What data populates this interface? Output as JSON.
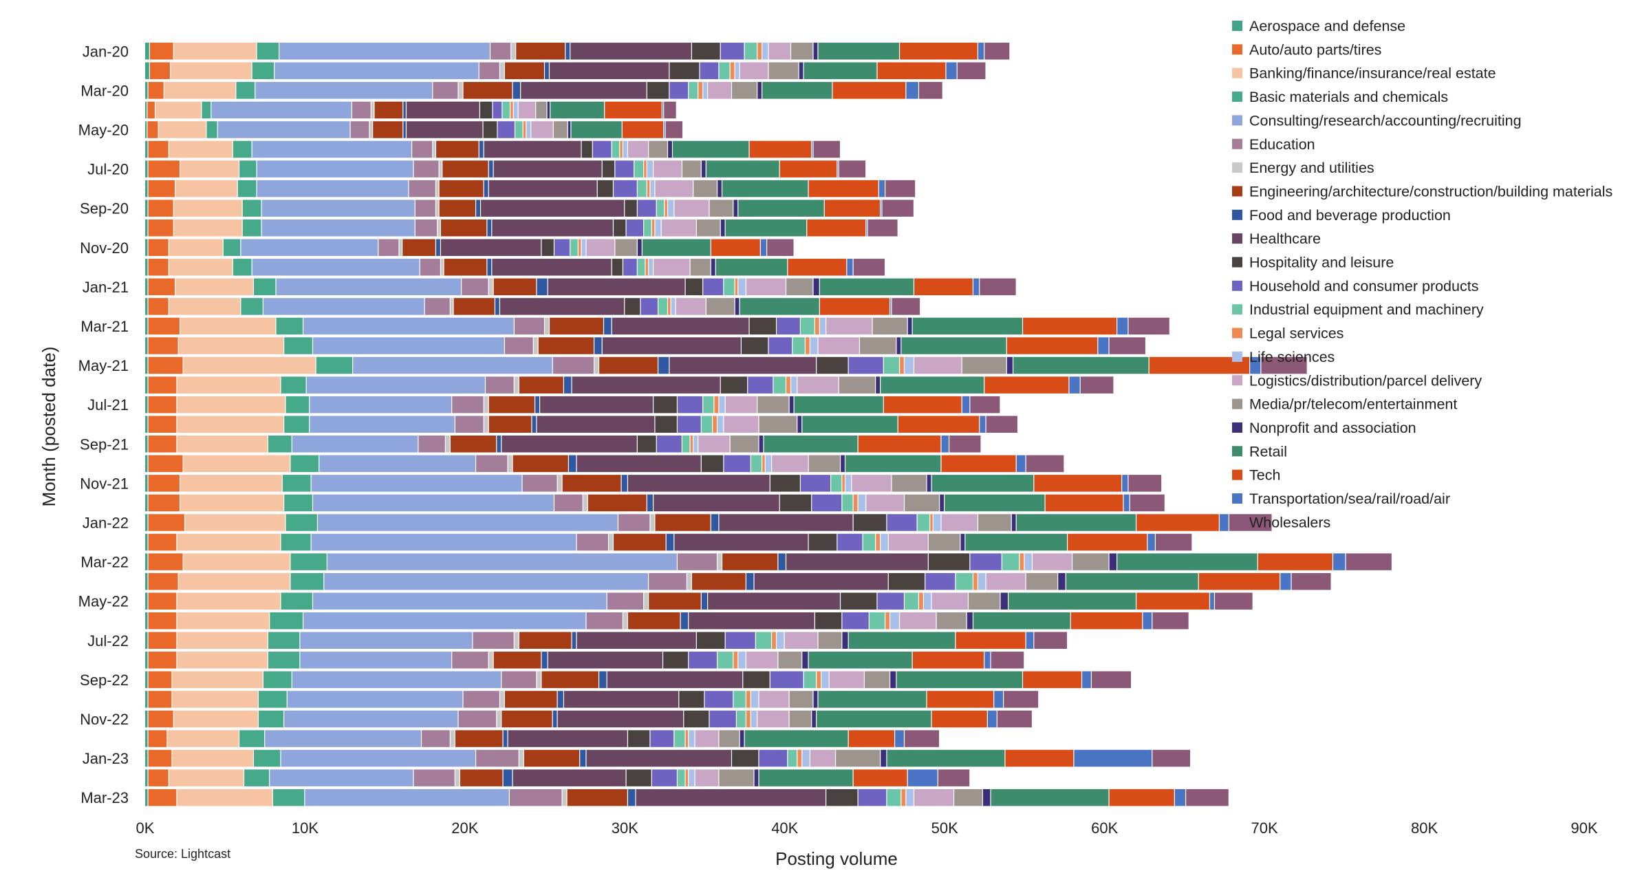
{
  "chart_data": {
    "type": "bar",
    "orientation": "horizontal",
    "stacked": true,
    "xlabel": "Posting volume",
    "ylabel": "Month (posted date)",
    "source": "Source: Lightcast",
    "xlim": [
      0,
      90000
    ],
    "x_ticks": [
      0,
      10000,
      20000,
      30000,
      40000,
      50000,
      60000,
      70000,
      80000,
      90000
    ],
    "x_tick_labels": [
      "0K",
      "10K",
      "20K",
      "30K",
      "40K",
      "50K",
      "60K",
      "70K",
      "80K",
      "90K"
    ],
    "grid": false,
    "legend_position": "right",
    "categories": [
      "Jan-20",
      "Feb-20",
      "Mar-20",
      "Apr-20",
      "May-20",
      "Jun-20",
      "Jul-20",
      "Aug-20",
      "Sep-20",
      "Oct-20",
      "Nov-20",
      "Dec-20",
      "Jan-21",
      "Feb-21",
      "Mar-21",
      "Apr-21",
      "May-21",
      "Jun-21",
      "Jul-21",
      "Aug-21",
      "Sep-21",
      "Oct-21",
      "Nov-21",
      "Dec-21",
      "Jan-22",
      "Feb-22",
      "Mar-22",
      "Apr-22",
      "May-22",
      "Jun-22",
      "Jul-22",
      "Aug-22",
      "Sep-22",
      "Oct-22",
      "Nov-22",
      "Dec-22",
      "Jan-23",
      "Feb-23",
      "Mar-23"
    ],
    "category_labels": [
      "Jan-20",
      "",
      "Mar-20",
      "",
      "May-20",
      "",
      "Jul-20",
      "",
      "Sep-20",
      "",
      "Nov-20",
      "",
      "Jan-21",
      "",
      "Mar-21",
      "",
      "May-21",
      "",
      "Jul-21",
      "",
      "Sep-21",
      "",
      "Nov-21",
      "",
      "Jan-22",
      "",
      "Mar-22",
      "",
      "May-22",
      "",
      "Jul-22",
      "",
      "Sep-22",
      "",
      "Nov-22",
      "",
      "Jan-23",
      "",
      "Mar-23"
    ],
    "series_names": [
      "Aerospace and defense",
      "Auto/auto parts/tires",
      "Banking/finance/insurance/real estate",
      "Basic materials and chemicals",
      "Consulting/research/accounting/recruiting",
      "Education",
      "Energy and utilities",
      "Engineering/architecture/construction/building materials",
      "Food and beverage production",
      "Healthcare",
      "Hospitality and leisure",
      "Household and consumer products",
      "Industrial equipment and machinery",
      "Legal services",
      "Life sciences",
      "Logistics/distribution/parcel delivery",
      "Media/pr/telecom/entertainment",
      "Nonprofit and association",
      "Retail",
      "Tech",
      "Transportation/sea/rail/road/air",
      "Wholesalers"
    ],
    "colors": [
      "#3fa489",
      "#e8692a",
      "#f6c3a3",
      "#45a98a",
      "#8ea6dc",
      "#a47d9a",
      "#c8c8c8",
      "#a53c15",
      "#2f58a0",
      "#6a4561",
      "#4a423f",
      "#6f63c2",
      "#6cc5a6",
      "#f08a55",
      "#a8c0ea",
      "#c9a6c6",
      "#9e948e",
      "#3c2f7a",
      "#3d8c6e",
      "#d84d17",
      "#4a74c4",
      "#8c5878"
    ],
    "series_values": [
      [
        300,
        300,
        200,
        150,
        150,
        200,
        200,
        200,
        200,
        200,
        200,
        200,
        200,
        200,
        200,
        200,
        200,
        200,
        200,
        200,
        200,
        200,
        200,
        200,
        200,
        200,
        200,
        200,
        200,
        200,
        200,
        200,
        200,
        200,
        200,
        200,
        200,
        200,
        200
      ],
      [
        1500,
        1300,
        1000,
        500,
        700,
        1300,
        2000,
        1700,
        1600,
        1600,
        1300,
        1300,
        1700,
        1300,
        2000,
        1900,
        2200,
        1800,
        1800,
        1800,
        1800,
        2200,
        2000,
        2000,
        2300,
        1800,
        2200,
        1900,
        1800,
        1800,
        1800,
        1800,
        1500,
        1500,
        1600,
        1200,
        1500,
        1300,
        1800
      ],
      [
        5200,
        5100,
        4500,
        2900,
        3000,
        4000,
        3700,
        3900,
        4300,
        4300,
        3400,
        4000,
        4900,
        4500,
        6000,
        6600,
        8300,
        6500,
        6800,
        6700,
        5700,
        6700,
        6400,
        6500,
        6300,
        6500,
        6700,
        7000,
        6500,
        5800,
        5700,
        5700,
        5700,
        5400,
        5300,
        4500,
        5100,
        4700,
        6000
      ],
      [
        1400,
        1400,
        1200,
        600,
        700,
        1200,
        1100,
        1200,
        1200,
        1200,
        1100,
        1200,
        1400,
        1400,
        1700,
        1800,
        2300,
        1600,
        1500,
        1600,
        1500,
        1800,
        1800,
        1800,
        2000,
        1900,
        2300,
        2100,
        2000,
        2100,
        2000,
        2000,
        1800,
        1800,
        1600,
        1600,
        1700,
        1600,
        2000
      ],
      [
        13200,
        12800,
        11100,
        8800,
        8300,
        10000,
        9800,
        9500,
        9600,
        9600,
        8600,
        10500,
        11600,
        10100,
        13200,
        12000,
        12500,
        11200,
        8900,
        9100,
        7900,
        9800,
        13200,
        15100,
        18800,
        16600,
        21900,
        20300,
        18400,
        17700,
        10800,
        9500,
        13100,
        11000,
        10900,
        9800,
        12200,
        9000,
        12800
      ],
      [
        1300,
        1300,
        1600,
        1200,
        1200,
        1300,
        1600,
        1700,
        1300,
        1400,
        1300,
        1300,
        1700,
        1600,
        1900,
        1800,
        2600,
        1800,
        2000,
        1800,
        1700,
        2000,
        2200,
        1800,
        2000,
        2000,
        2500,
        2400,
        2300,
        2300,
        2600,
        2300,
        2200,
        2300,
        2400,
        1800,
        2700,
        2600,
        3300
      ],
      [
        300,
        300,
        300,
        200,
        200,
        200,
        200,
        200,
        200,
        200,
        200,
        200,
        300,
        200,
        300,
        300,
        300,
        300,
        300,
        300,
        300,
        300,
        300,
        300,
        300,
        300,
        300,
        300,
        300,
        300,
        300,
        300,
        300,
        300,
        300,
        300,
        300,
        300,
        300
      ],
      [
        3100,
        2500,
        3100,
        1800,
        1900,
        2700,
        2900,
        2800,
        2300,
        2900,
        2100,
        2700,
        2700,
        2600,
        3400,
        3500,
        3700,
        2800,
        2900,
        2700,
        2900,
        3500,
        3700,
        3700,
        3500,
        3300,
        3500,
        3400,
        3300,
        3300,
        3300,
        3000,
        3600,
        3300,
        3200,
        3000,
        3500,
        2700,
        3800
      ],
      [
        300,
        300,
        500,
        200,
        200,
        300,
        300,
        300,
        300,
        300,
        300,
        300,
        700,
        300,
        500,
        500,
        700,
        500,
        300,
        300,
        300,
        500,
        400,
        400,
        500,
        500,
        500,
        500,
        400,
        500,
        300,
        400,
        500,
        400,
        300,
        300,
        400,
        600,
        500
      ],
      [
        7600,
        7500,
        7900,
        4600,
        4800,
        6100,
        6800,
        6800,
        9000,
        7600,
        6300,
        7500,
        8600,
        7800,
        8600,
        8700,
        9200,
        9300,
        7100,
        7400,
        8500,
        7800,
        8900,
        7900,
        8400,
        8400,
        8900,
        8400,
        8300,
        7900,
        7500,
        7200,
        8500,
        7200,
        7900,
        7500,
        9100,
        7100,
        11900
      ],
      [
        1800,
        1900,
        1400,
        800,
        900,
        700,
        800,
        1000,
        800,
        800,
        800,
        700,
        1100,
        1000,
        1700,
        1700,
        2000,
        1700,
        1500,
        1400,
        1200,
        1400,
        1900,
        2000,
        2100,
        1800,
        2600,
        2300,
        2300,
        1700,
        1800,
        1600,
        1700,
        1600,
        1600,
        1400,
        1700,
        1600,
        2000
      ],
      [
        1500,
        1200,
        1200,
        600,
        1100,
        1200,
        1200,
        1500,
        1200,
        1100,
        1000,
        900,
        1300,
        1100,
        1500,
        1500,
        2200,
        1600,
        1600,
        1500,
        1600,
        1700,
        1900,
        1900,
        1900,
        1600,
        2000,
        1900,
        1700,
        1700,
        1900,
        1800,
        2100,
        1800,
        1700,
        1500,
        1800,
        1600,
        1800
      ],
      [
        800,
        700,
        600,
        500,
        500,
        500,
        600,
        600,
        500,
        500,
        500,
        500,
        700,
        600,
        900,
        800,
        1000,
        800,
        700,
        700,
        500,
        700,
        700,
        700,
        800,
        800,
        1100,
        1100,
        900,
        1000,
        1000,
        1000,
        800,
        800,
        600,
        700,
        600,
        500,
        900
      ],
      [
        300,
        300,
        300,
        200,
        200,
        200,
        200,
        200,
        200,
        200,
        200,
        200,
        200,
        200,
        300,
        300,
        300,
        300,
        300,
        300,
        200,
        200,
        200,
        300,
        200,
        300,
        300,
        300,
        300,
        300,
        300,
        300,
        300,
        300,
        300,
        200,
        300,
        200,
        300
      ],
      [
        400,
        300,
        300,
        300,
        300,
        300,
        400,
        300,
        400,
        400,
        300,
        300,
        500,
        300,
        400,
        500,
        600,
        400,
        400,
        400,
        300,
        400,
        400,
        500,
        500,
        500,
        500,
        500,
        500,
        600,
        500,
        500,
        500,
        500,
        400,
        400,
        500,
        400,
        500
      ],
      [
        1400,
        1800,
        1500,
        1100,
        1400,
        1300,
        1800,
        2400,
        2200,
        2200,
        1800,
        2300,
        2500,
        1900,
        2900,
        2600,
        3000,
        2600,
        2000,
        2200,
        2000,
        2300,
        2500,
        2400,
        2300,
        2500,
        2500,
        2500,
        2300,
        2300,
        2100,
        2000,
        2200,
        1900,
        2000,
        1500,
        1600,
        1500,
        2500
      ],
      [
        1400,
        1900,
        1600,
        700,
        900,
        1200,
        1200,
        1500,
        1500,
        1500,
        1400,
        1300,
        1700,
        1800,
        2200,
        2300,
        2800,
        2300,
        2000,
        2400,
        1800,
        2000,
        2200,
        2200,
        2100,
        2000,
        2300,
        2000,
        2000,
        1900,
        1500,
        1500,
        1600,
        1500,
        1400,
        1300,
        2800,
        2200,
        1800
      ],
      [
        300,
        300,
        300,
        200,
        200,
        300,
        300,
        300,
        300,
        300,
        300,
        300,
        400,
        300,
        300,
        300,
        400,
        300,
        300,
        300,
        300,
        300,
        300,
        300,
        300,
        300,
        500,
        500,
        500,
        400,
        400,
        400,
        400,
        300,
        300,
        300,
        400,
        300,
        500
      ],
      [
        5100,
        4600,
        4400,
        3400,
        3200,
        4800,
        4600,
        5400,
        5400,
        5100,
        4300,
        4500,
        5900,
        5000,
        6900,
        6600,
        8500,
        6500,
        5600,
        6000,
        5900,
        6000,
        6400,
        6300,
        7500,
        6400,
        8800,
        8300,
        8000,
        6100,
        6700,
        6500,
        7900,
        6800,
        7200,
        6500,
        7400,
        5900,
        7400
      ],
      [
        4900,
        4300,
        4600,
        3600,
        2600,
        3900,
        3600,
        4400,
        3500,
        3700,
        3100,
        3700,
        3700,
        4400,
        5900,
        5700,
        6300,
        5300,
        4900,
        5100,
        5200,
        4700,
        5500,
        4900,
        5200,
        5000,
        4700,
        5100,
        4600,
        4500,
        4400,
        4500,
        3700,
        4200,
        3500,
        2900,
        4300,
        3400,
        4100
      ],
      [
        400,
        700,
        800,
        100,
        100,
        100,
        100,
        400,
        100,
        100,
        400,
        400,
        400,
        100,
        700,
        700,
        700,
        700,
        500,
        400,
        500,
        600,
        400,
        400,
        600,
        500,
        800,
        700,
        300,
        600,
        500,
        400,
        600,
        600,
        600,
        600,
        4900,
        1900,
        700
      ],
      [
        1600,
        1800,
        1500,
        800,
        1100,
        1700,
        1700,
        1900,
        2000,
        1900,
        1700,
        2000,
        2300,
        1800,
        2600,
        2300,
        2900,
        2100,
        1900,
        2000,
        2000,
        2400,
        2100,
        2200,
        2700,
        2300,
        2900,
        2500,
        2400,
        2300,
        2100,
        2100,
        2500,
        2200,
        2200,
        2200,
        2400,
        2000,
        2700
      ]
    ]
  }
}
